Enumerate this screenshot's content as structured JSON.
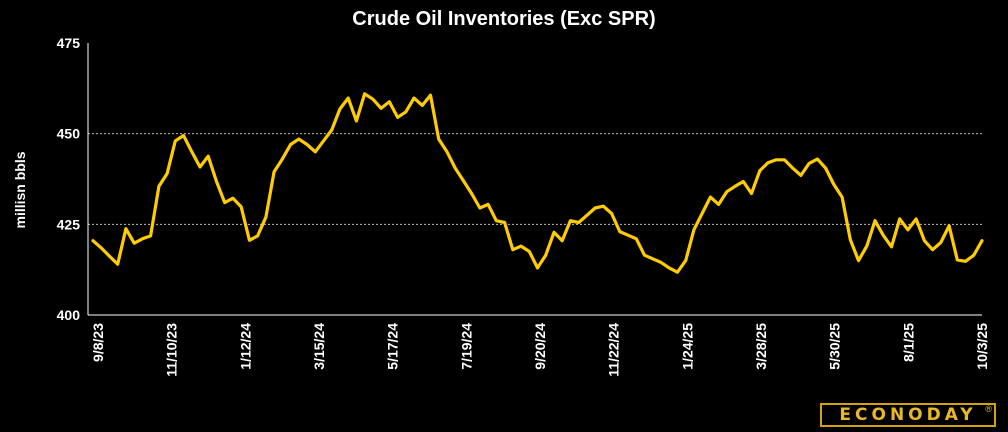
{
  "chart_data": {
    "type": "line",
    "title": "Crude Oil Inventories (Exc SPR)",
    "ylabel": "millisn bbls",
    "xlabel": "",
    "ylim": [
      400,
      475
    ],
    "yticks": [
      400,
      425,
      450,
      475
    ],
    "grid_y": [
      425,
      450
    ],
    "x_ticks": [
      "9/8/23",
      "11/10/23",
      "1/12/24",
      "3/15/24",
      "5/17/24",
      "7/19/24",
      "9/20/24",
      "11/22/24",
      "1/24/25",
      "3/28/25",
      "5/30/25",
      "8/1/25",
      "10/3/25"
    ],
    "series": [
      {
        "color": "#ffcc00",
        "values": [
          420.5,
          418.5,
          416.2,
          414.0,
          423.8,
          419.8,
          421.0,
          421.8,
          435.5,
          439.0,
          448.0,
          449.5,
          445.0,
          440.8,
          443.8,
          436.8,
          431.0,
          432.2,
          429.8,
          420.6,
          421.8,
          427.0,
          439.5,
          443.0,
          447.0,
          448.5,
          447.0,
          445.0,
          448.0,
          451.0,
          456.8,
          459.8,
          453.5,
          461.0,
          459.5,
          457.0,
          458.8,
          454.5,
          456.0,
          459.8,
          457.8,
          460.6,
          448.5,
          445.0,
          440.5,
          437.0,
          433.5,
          429.5,
          430.5,
          426.0,
          425.5,
          418.0,
          419.0,
          417.5,
          413.0,
          416.5,
          422.8,
          420.5,
          426.0,
          425.5,
          427.5,
          429.5,
          430.0,
          428.0,
          423.0,
          422.0,
          421.0,
          416.5,
          415.5,
          414.5,
          413.0,
          411.8,
          415.0,
          423.5,
          428.0,
          432.5,
          430.5,
          434.0,
          435.5,
          436.8,
          433.5,
          439.8,
          442.0,
          442.8,
          442.8,
          440.5,
          438.5,
          441.8,
          443.0,
          440.5,
          436.0,
          432.5,
          420.8,
          415.0,
          419.0,
          426.0,
          422.0,
          418.8,
          426.5,
          423.5,
          426.5,
          420.5,
          418.0,
          420.0,
          424.6,
          415.2,
          414.8,
          416.5,
          420.5
        ]
      }
    ]
  },
  "logo": {
    "text": "ECONODAY",
    "reg": "®"
  }
}
